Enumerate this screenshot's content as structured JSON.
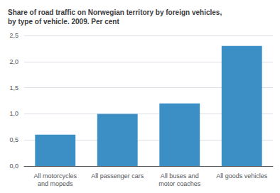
{
  "chart_data": {
    "type": "bar",
    "title": "Share of road traffic on Norwegian territory by foreign vehicles,\nby type of vehicle. 2009. Per cent",
    "categories": [
      "All motorcycles\nand mopeds",
      "All passenger cars",
      "All buses and\nmotor coaches",
      "All goods vehicles"
    ],
    "values": [
      0.6,
      1.0,
      1.2,
      2.3
    ],
    "color": "#3b8fc5",
    "ylim": [
      0,
      2.5
    ],
    "yticks": [
      {
        "value": 0,
        "label": "0,0"
      },
      {
        "value": 0.5,
        "label": "0,5"
      },
      {
        "value": 1,
        "label": "1,0"
      },
      {
        "value": 1.5,
        "label": "1,5"
      },
      {
        "value": 2,
        "label": "2,0"
      },
      {
        "value": 2.5,
        "label": "2,5"
      }
    ],
    "grid": true
  }
}
